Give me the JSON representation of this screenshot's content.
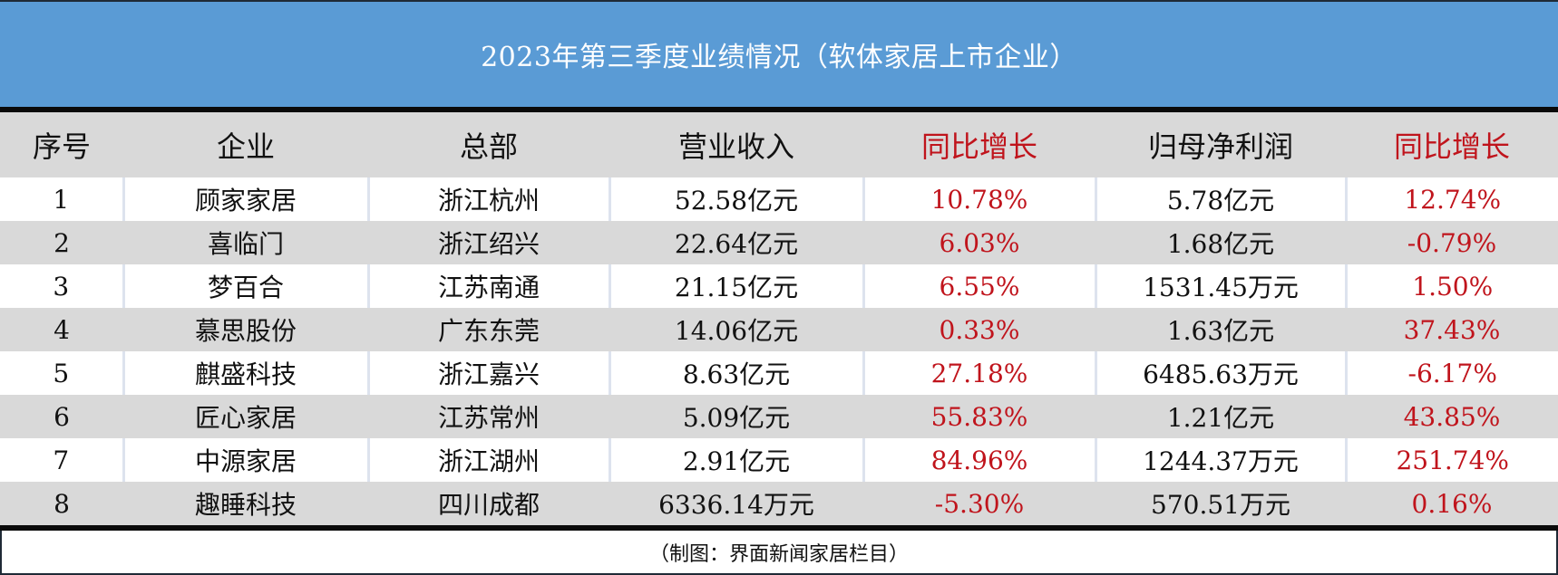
{
  "title": "2023年第三季度业绩情况（软体家居上市企业）",
  "headers": [
    "序号",
    "企业",
    "总部",
    "营业收入",
    "同比增长",
    "归母净利润",
    "同比增长"
  ],
  "rows": [
    [
      "1",
      "顾家家居",
      "浙江杭州",
      "52.58亿元",
      "10.78%",
      "5.78亿元",
      "12.74%"
    ],
    [
      "2",
      "喜临门",
      "浙江绍兴",
      "22.64亿元",
      "6.03%",
      "1.68亿元",
      "-0.79%"
    ],
    [
      "3",
      "梦百合",
      "江苏南通",
      "21.15亿元",
      "6.55%",
      "1531.45万元",
      "1.50%"
    ],
    [
      "4",
      "慕思股份",
      "广东东莞",
      "14.06亿元",
      "0.33%",
      "1.63亿元",
      "37.43%"
    ],
    [
      "5",
      "麒盛科技",
      "浙江嘉兴",
      "8.63亿元",
      "27.18%",
      "6485.63万元",
      "-6.17%"
    ],
    [
      "6",
      "匠心家居",
      "江苏常州",
      "5.09亿元",
      "55.83%",
      "1.21亿元",
      "43.85%"
    ],
    [
      "7",
      "中源家居",
      "浙江湖州",
      "2.91亿元",
      "84.96%",
      "1244.37万元",
      "251.74%"
    ],
    [
      "8",
      "趣睡科技",
      "四川成都",
      "6336.14万元",
      "-5.30%",
      "570.51万元",
      "0.16%"
    ]
  ],
  "source": "（制图：界面新闻家居栏目）",
  "colors": {
    "title_bg": "#5a9bd5",
    "header_bg": "#d9d9d9",
    "growth_red": "#c0141c",
    "rule_black": "#0a0a0a"
  }
}
